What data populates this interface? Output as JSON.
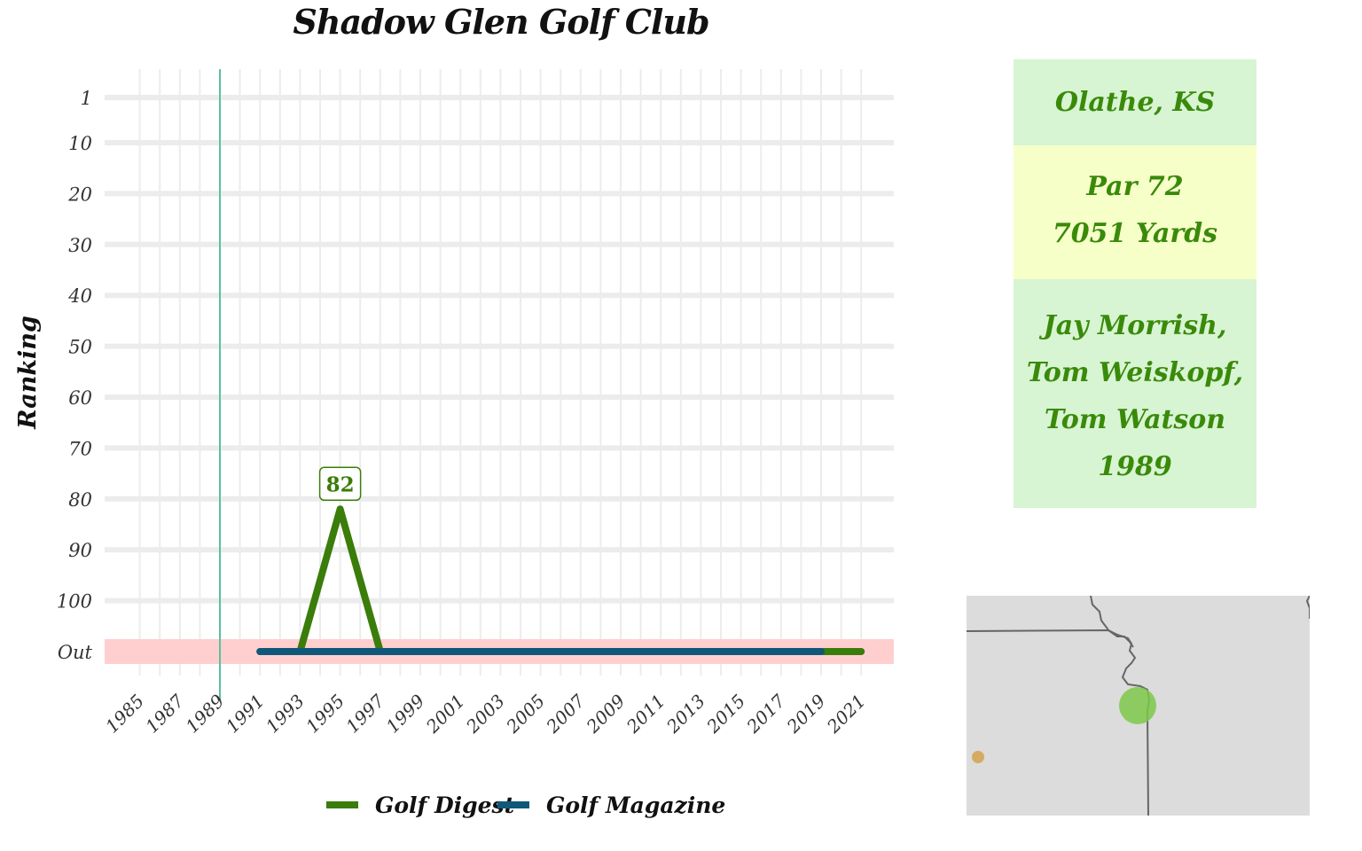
{
  "title": "Shadow Glen Golf Club",
  "chart_data": {
    "type": "line",
    "title": "Shadow Glen Golf Club",
    "xlabel": "",
    "ylabel": "Ranking",
    "x_ticks": [
      "1985",
      "1987",
      "1989",
      "1991",
      "1993",
      "1995",
      "1997",
      "1999",
      "2001",
      "2003",
      "2005",
      "2007",
      "2009",
      "2011",
      "2013",
      "2015",
      "2017",
      "2019",
      "2021"
    ],
    "y_ticks": [
      "1",
      "10",
      "20",
      "30",
      "40",
      "50",
      "60",
      "70",
      "80",
      "90",
      "100",
      "Out"
    ],
    "y_reversed": true,
    "xlim": [
      1984,
      2022
    ],
    "opened_year": 1989,
    "out_band_label": "Out",
    "series": [
      {
        "name": "Golf Digest",
        "color": "#3a7d0a",
        "points": [
          [
            1991,
            "Out"
          ],
          [
            1993,
            "Out"
          ],
          [
            1995,
            82
          ],
          [
            1997,
            "Out"
          ],
          [
            1999,
            "Out"
          ],
          [
            2001,
            "Out"
          ],
          [
            2003,
            "Out"
          ],
          [
            2005,
            "Out"
          ],
          [
            2007,
            "Out"
          ],
          [
            2009,
            "Out"
          ],
          [
            2011,
            "Out"
          ],
          [
            2013,
            "Out"
          ],
          [
            2015,
            "Out"
          ],
          [
            2017,
            "Out"
          ],
          [
            2019,
            "Out"
          ],
          [
            2021,
            "Out"
          ]
        ]
      },
      {
        "name": "Golf Magazine",
        "color": "#10587a",
        "points": [
          [
            1991,
            "Out"
          ],
          [
            1993,
            "Out"
          ],
          [
            1995,
            "Out"
          ],
          [
            1997,
            "Out"
          ],
          [
            1999,
            "Out"
          ],
          [
            2001,
            "Out"
          ],
          [
            2003,
            "Out"
          ],
          [
            2005,
            "Out"
          ],
          [
            2007,
            "Out"
          ],
          [
            2009,
            "Out"
          ],
          [
            2011,
            "Out"
          ],
          [
            2013,
            "Out"
          ],
          [
            2015,
            "Out"
          ],
          [
            2017,
            "Out"
          ],
          [
            2019,
            "Out"
          ]
        ]
      }
    ],
    "annotations": [
      {
        "x": 1995,
        "y": 82,
        "label": "82"
      }
    ],
    "legend_position": "bottom",
    "grid": true,
    "colors": {
      "out_band": "#ffcfcf",
      "opened_line": "#5cc0a0",
      "grid": "#ececec"
    }
  },
  "info": {
    "location": "Olathe, KS",
    "par": "Par 72",
    "yards": "7051 Yards",
    "architects": [
      "Jay Morrish,",
      "Tom Weiskopf,",
      "Tom Watson"
    ],
    "year": "1989",
    "colors": {
      "location_bg": "#d7f4d3",
      "par_bg": "#f7ffc9",
      "text": "#3a8a0a"
    }
  },
  "map": {
    "colors": {
      "land": "#dcdcdc",
      "border": "#666666",
      "primary_marker": "#7cc84a",
      "secondary_marker": "#d4a24c"
    }
  }
}
